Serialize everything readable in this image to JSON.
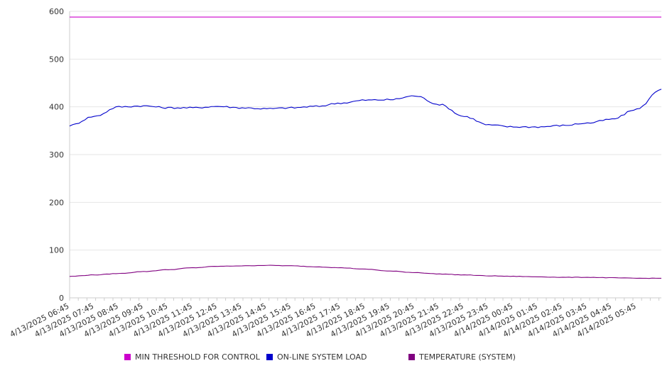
{
  "chart_data": {
    "type": "line",
    "title": "",
    "xlabel": "",
    "ylabel": "",
    "ylim": [
      0,
      600
    ],
    "yticks": [
      0,
      100,
      200,
      300,
      400,
      500,
      600
    ],
    "grid": "horizontal",
    "legend_position": "bottom",
    "x_tick_labels": [
      "4/13/2025 06:45",
      "4/13/2025 07:45",
      "4/13/2025 08:45",
      "4/13/2025 09:45",
      "4/13/2025 10:45",
      "4/13/2025 11:45",
      "4/13/2025 12:45",
      "4/13/2025 13:45",
      "4/13/2025 14:45",
      "4/13/2025 15:45",
      "4/13/2025 16:45",
      "4/13/2025 17:45",
      "4/13/2025 18:45",
      "4/13/2025 19:45",
      "4/13/2025 20:45",
      "4/13/2025 21:45",
      "4/13/2025 22:45",
      "4/13/2025 23:45",
      "4/14/2025 00:45",
      "4/14/2025 01:45",
      "4/14/2025 02:45",
      "4/14/2025 03:45",
      "4/14/2025 04:45",
      "4/14/2025 05:45"
    ],
    "x": [
      "4/13/2025 06:45",
      "4/13/2025 07:45",
      "4/13/2025 08:45",
      "4/13/2025 09:45",
      "4/13/2025 10:45",
      "4/13/2025 11:45",
      "4/13/2025 12:45",
      "4/13/2025 13:45",
      "4/13/2025 14:45",
      "4/13/2025 15:45",
      "4/13/2025 16:45",
      "4/13/2025 17:45",
      "4/13/2025 18:45",
      "4/13/2025 19:45",
      "4/13/2025 20:45",
      "4/13/2025 21:45",
      "4/13/2025 22:45",
      "4/13/2025 23:45",
      "4/14/2025 00:45",
      "4/14/2025 01:45",
      "4/14/2025 02:45",
      "4/14/2025 03:45",
      "4/14/2025 04:45",
      "4/14/2025 05:45",
      "4/14/2025 06:45"
    ],
    "series": [
      {
        "name": "MIN THRESHOLD FOR CONTROL",
        "color": "#cc00cc",
        "values": [
          588,
          588,
          588,
          588,
          588,
          588,
          588,
          588,
          588,
          588,
          588,
          588,
          588,
          588,
          588,
          588,
          588,
          588,
          588,
          588,
          588,
          588,
          588,
          588,
          588
        ]
      },
      {
        "name": "ON-LINE SYSTEM LOAD",
        "color": "#0000cc",
        "values": [
          361,
          380,
          400,
          402,
          398,
          398,
          401,
          398,
          396,
          398,
          401,
          408,
          414,
          415,
          423,
          405,
          380,
          362,
          358,
          358,
          361,
          366,
          374,
          395,
          437
        ]
      },
      {
        "name": "TEMPERATURE (SYSTEM)",
        "color": "#800080",
        "values": [
          45,
          48,
          51,
          55,
          59,
          63,
          66,
          67,
          68,
          67,
          65,
          63,
          60,
          56,
          53,
          50,
          48,
          46,
          45,
          44,
          43,
          43,
          42,
          41,
          41
        ]
      }
    ]
  }
}
